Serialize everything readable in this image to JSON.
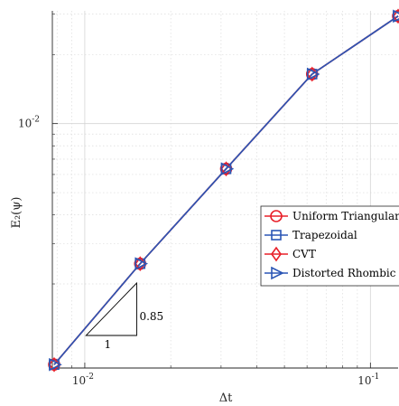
{
  "chart_data": {
    "type": "line",
    "xlabel": "Δt",
    "ylabel": "E₂(ψ)",
    "xscale": "log",
    "yscale": "log",
    "xlim": [
      0.0077,
      0.125
    ],
    "ylim": [
      0.00086,
      0.031
    ],
    "grid": true,
    "x_ticks": [
      {
        "value": 0.01,
        "label": "10",
        "exp": "-2"
      },
      {
        "value": 0.1,
        "label": "10",
        "exp": "-1"
      }
    ],
    "y_ticks": [
      {
        "value": 0.01,
        "label": "10",
        "exp": "-2"
      }
    ],
    "legend_position": "right",
    "series": [
      {
        "name": "Uniform Triangular",
        "color": "#e8202a",
        "marker": "circle",
        "x": [
          0.0078125,
          0.015625,
          0.03125,
          0.0625,
          0.125
        ],
        "y": [
          0.00089,
          0.00245,
          0.00635,
          0.01643,
          0.0294
        ]
      },
      {
        "name": "Trapezoidal",
        "color": "#2b56b5",
        "marker": "square",
        "x": [
          0.0078125,
          0.015625,
          0.03125,
          0.0625,
          0.125
        ],
        "y": [
          0.00089,
          0.00245,
          0.00635,
          0.01643,
          0.0294
        ]
      },
      {
        "name": "CVT",
        "color": "#e8202a",
        "marker": "diamond",
        "x": [
          0.0078125,
          0.015625,
          0.03125,
          0.0625,
          0.125
        ],
        "y": [
          0.00089,
          0.00245,
          0.00635,
          0.01643,
          0.0294
        ]
      },
      {
        "name": "Distorted Rhombic",
        "color": "#2b56b5",
        "marker": "triangle-right",
        "x": [
          0.0078125,
          0.015625,
          0.03125,
          0.0625,
          0.125
        ],
        "y": [
          0.00089,
          0.00245,
          0.00635,
          0.01643,
          0.0294
        ]
      }
    ],
    "annotations": {
      "slope_triangle": {
        "run_label": "1",
        "rise_label": "0.85"
      }
    }
  }
}
